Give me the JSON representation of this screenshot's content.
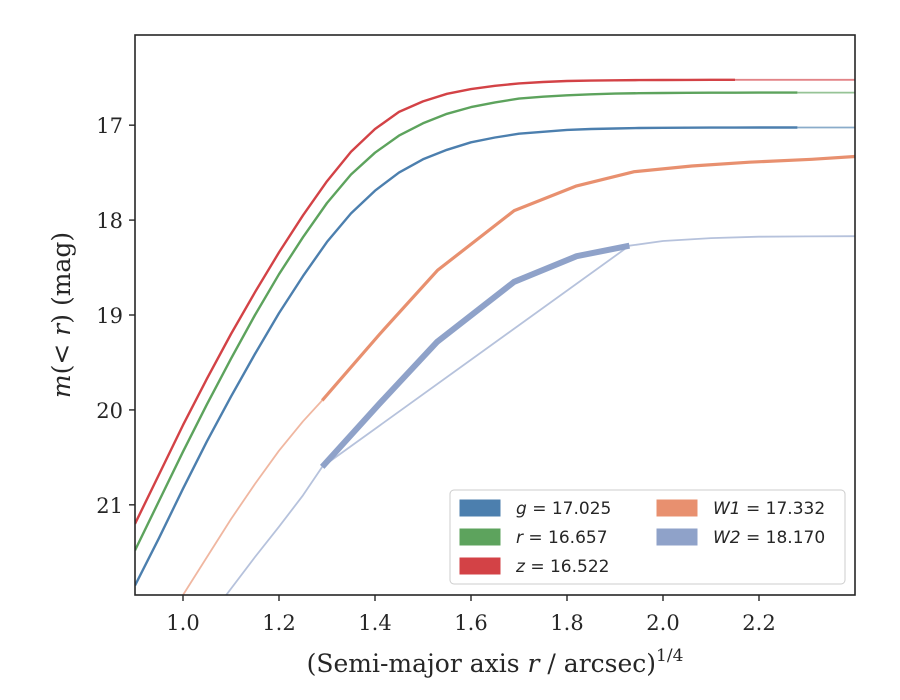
{
  "chart_data": {
    "type": "line",
    "title": "",
    "xlabel": "(Semi-major axis r / arcsec)",
    "xlabel_prefix": "(Semi-major axis ",
    "xlabel_var": "r",
    "xlabel_suffix": " / arcsec)",
    "xlabel_exp": "1/4",
    "ylabel_prefix": "m",
    "ylabel_mid": "(< ",
    "ylabel_var": "r",
    "ylabel_suffix": ") (mag)",
    "xlim": [
      0.9,
      2.4
    ],
    "ylim": [
      21.95,
      16.05
    ],
    "y_inverted": true,
    "grid": false,
    "x_ticks": [
      1.0,
      1.2,
      1.4,
      1.6,
      1.8,
      2.0,
      2.2
    ],
    "x_tick_labels": [
      "1.0",
      "1.2",
      "1.4",
      "1.6",
      "1.8",
      "2.0",
      "2.2"
    ],
    "y_ticks": [
      17,
      18,
      19,
      20,
      21
    ],
    "y_tick_labels": [
      "17",
      "18",
      "19",
      "20",
      "21"
    ],
    "legend_placement": "lower-right",
    "series": [
      {
        "name": "g = 17.025",
        "var": "g",
        "value": "17.025",
        "color": "#4c7fae",
        "thick_x": [
          0.9,
          0.95,
          1.0,
          1.05,
          1.1,
          1.15,
          1.2,
          1.25,
          1.3,
          1.35,
          1.4,
          1.45,
          1.5,
          1.55,
          1.6,
          1.65,
          1.7,
          1.75,
          1.8,
          1.85,
          1.9,
          1.95,
          2.0,
          2.05,
          2.1,
          2.15,
          2.2,
          2.25,
          2.28
        ],
        "thick_y": [
          21.85,
          21.35,
          20.83,
          20.33,
          19.86,
          19.41,
          18.98,
          18.59,
          18.23,
          17.93,
          17.69,
          17.5,
          17.36,
          17.26,
          17.18,
          17.13,
          17.09,
          17.07,
          17.05,
          17.04,
          17.035,
          17.03,
          17.028,
          17.027,
          17.026,
          17.026,
          17.025,
          17.025,
          17.025
        ],
        "thin_x": [
          2.28,
          2.4
        ],
        "thin_y": [
          17.025,
          17.025
        ]
      },
      {
        "name": "r = 16.657",
        "var": "r",
        "value": "16.657",
        "color": "#5da35d",
        "thick_x": [
          0.9,
          0.95,
          1.0,
          1.05,
          1.1,
          1.15,
          1.2,
          1.25,
          1.3,
          1.35,
          1.4,
          1.45,
          1.5,
          1.55,
          1.6,
          1.65,
          1.7,
          1.75,
          1.8,
          1.85,
          1.9,
          1.95,
          2.0,
          2.05,
          2.1,
          2.15,
          2.2,
          2.25,
          2.28
        ],
        "thick_y": [
          21.48,
          20.96,
          20.44,
          19.94,
          19.46,
          19.0,
          18.57,
          18.18,
          17.82,
          17.52,
          17.29,
          17.11,
          16.98,
          16.88,
          16.81,
          16.76,
          16.72,
          16.7,
          16.685,
          16.675,
          16.667,
          16.663,
          16.661,
          16.659,
          16.658,
          16.658,
          16.657,
          16.657,
          16.657
        ],
        "thin_x": [
          2.28,
          2.4
        ],
        "thin_y": [
          16.657,
          16.657
        ]
      },
      {
        "name": "z = 16.522",
        "var": "z",
        "value": "16.522",
        "color": "#d34246",
        "thick_x": [
          0.9,
          0.95,
          1.0,
          1.05,
          1.1,
          1.15,
          1.2,
          1.25,
          1.3,
          1.35,
          1.4,
          1.45,
          1.5,
          1.55,
          1.6,
          1.65,
          1.7,
          1.75,
          1.8,
          1.85,
          1.9,
          1.95,
          2.0,
          2.05,
          2.1,
          2.15
        ],
        "thick_y": [
          21.2,
          20.68,
          20.16,
          19.67,
          19.2,
          18.76,
          18.34,
          17.95,
          17.59,
          17.28,
          17.04,
          16.86,
          16.75,
          16.67,
          16.62,
          16.585,
          16.56,
          16.545,
          16.535,
          16.53,
          16.527,
          16.525,
          16.524,
          16.523,
          16.522,
          16.522
        ],
        "thin_x": [
          2.15,
          2.4
        ],
        "thin_y": [
          16.522,
          16.522
        ]
      },
      {
        "name": "W1 = 17.332",
        "var": "W1",
        "value": "17.332",
        "color": "#e8906f",
        "thick_x": [
          1.29,
          1.41,
          1.53,
          1.69,
          1.82,
          1.94,
          2.06,
          2.18,
          2.31,
          2.4
        ],
        "thick_y": [
          19.9,
          19.2,
          18.53,
          17.9,
          17.64,
          17.49,
          17.43,
          17.39,
          17.36,
          17.33
        ],
        "thin_x": [
          1.0,
          1.05,
          1.1,
          1.15,
          1.2,
          1.25,
          1.29
        ],
        "thin_y": [
          21.95,
          21.55,
          21.15,
          20.78,
          20.43,
          20.12,
          19.9
        ]
      },
      {
        "name": "W2 = 18.170",
        "var": "W2",
        "value": "18.170",
        "color": "#8fa2c9",
        "thick_x": [
          1.29,
          1.41,
          1.53,
          1.69,
          1.82,
          1.93
        ],
        "thick_y": [
          20.6,
          19.93,
          19.28,
          18.65,
          18.38,
          18.27
        ],
        "thin_x": [
          1.09,
          1.15,
          1.2,
          1.25,
          1.29,
          1.93,
          2.0,
          2.1,
          2.2,
          2.3,
          2.4
        ],
        "thin_y": [
          21.95,
          21.55,
          21.23,
          20.9,
          20.6,
          18.27,
          18.22,
          18.19,
          18.175,
          18.172,
          18.17
        ]
      }
    ]
  }
}
